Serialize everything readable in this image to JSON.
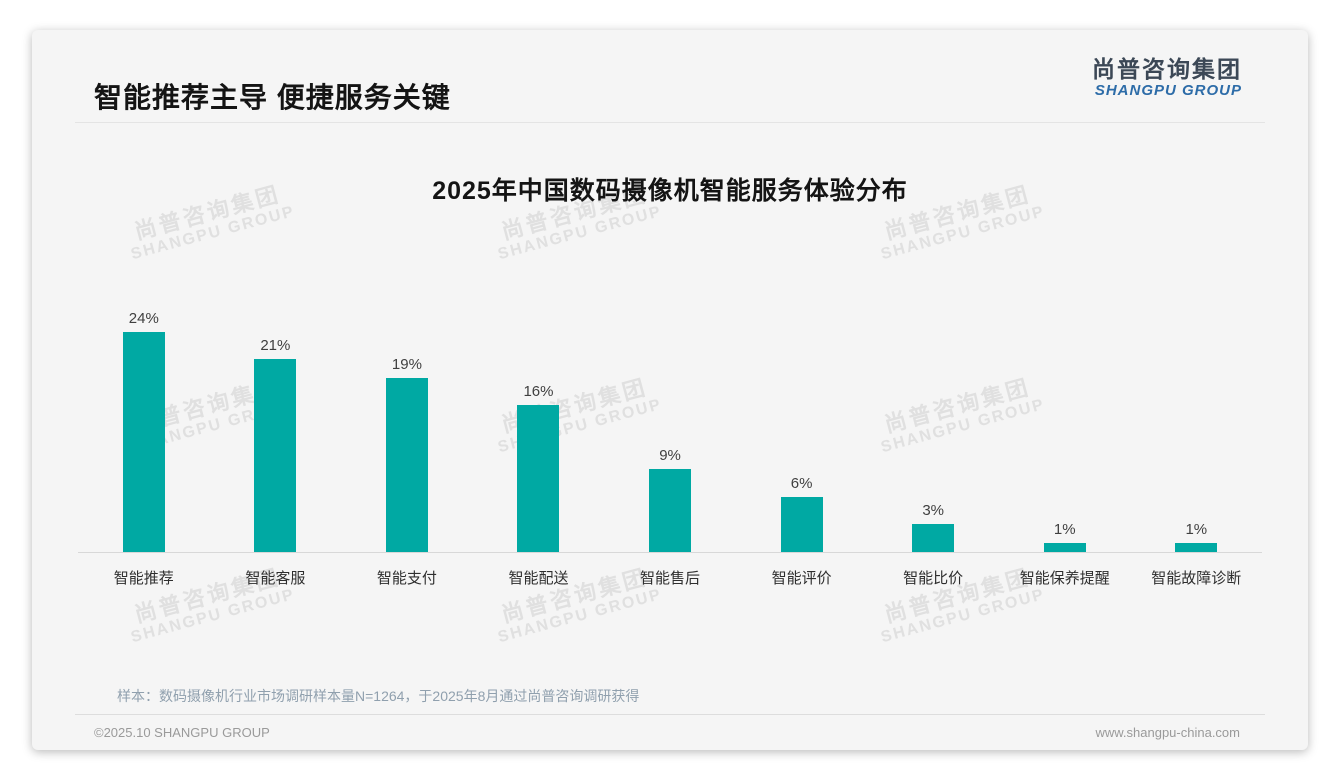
{
  "header": {
    "title": "智能推荐主导 便捷服务关键"
  },
  "logo": {
    "cn": "尚普咨询集团",
    "en": "SHANGPU GROUP"
  },
  "watermark": {
    "cn": "尚普咨询集团",
    "en": "SHANGPU GROUP"
  },
  "chart_data": {
    "type": "bar",
    "title": "2025年中国数码摄像机智能服务体验分布",
    "categories": [
      "智能推荐",
      "智能客服",
      "智能支付",
      "智能配送",
      "智能售后",
      "智能评价",
      "智能比价",
      "智能保养提醒",
      "智能故障诊断"
    ],
    "values": [
      24,
      21,
      19,
      16,
      9,
      6,
      3,
      1,
      1
    ],
    "value_labels": [
      "24%",
      "21%",
      "19%",
      "16%",
      "9%",
      "6%",
      "3%",
      "1%",
      "1%"
    ],
    "unit": "%",
    "xlabel": "",
    "ylabel": "",
    "ylim": [
      0,
      26
    ],
    "grid": false,
    "legend": null,
    "bar_color": "#00a9a3"
  },
  "note": "样本：数码摄像机行业市场调研样本量N=1264，于2025年8月通过尚普咨询调研获得",
  "footer": {
    "left": "©2025.10 SHANGPU GROUP",
    "right": "www.shangpu-china.com"
  },
  "colors": {
    "bar": "#00a9a3",
    "logo_cn": "#3c4856",
    "logo_en": "#2d6ca8",
    "card_bg": "#f5f5f5",
    "watermark": "#e0e0e0"
  }
}
